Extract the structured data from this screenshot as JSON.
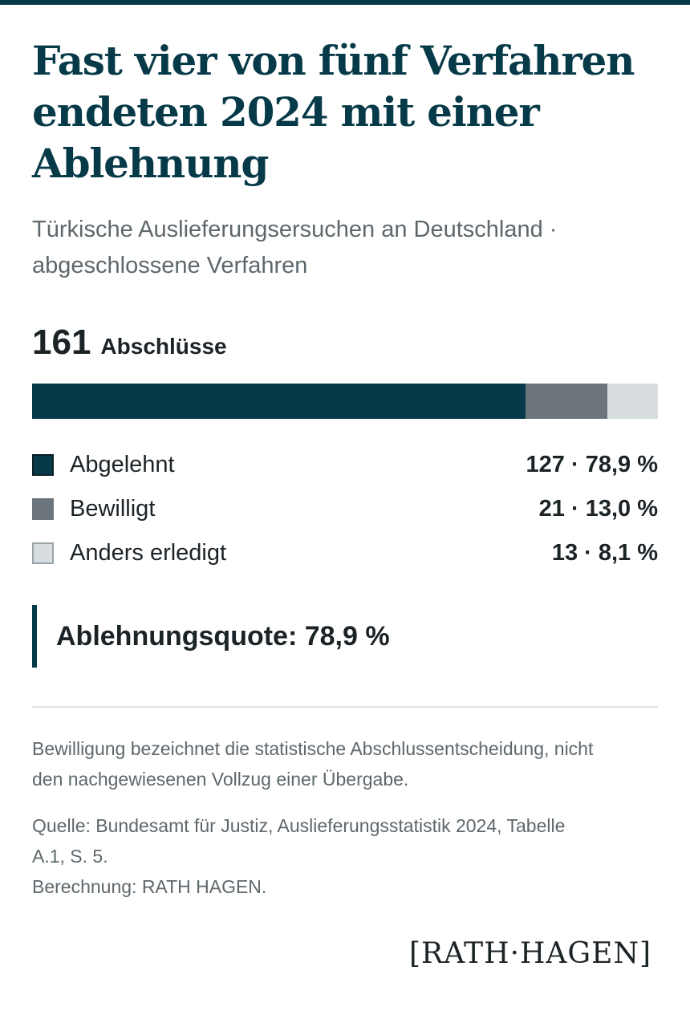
{
  "header": {
    "title": "Fast vier von fünf Verfahren endeten 2024 mit einer Ablehnung",
    "subtitle_line1": "Türkische Auslieferungsersuchen an Deutschland ·",
    "subtitle_line2": "abgeschlossene Verfahren"
  },
  "colors": {
    "accent": "#073a48",
    "abgelehnt": "#073a48",
    "bewilligt": "#6b757b",
    "anders": "#d7dde0"
  },
  "chart_data": {
    "type": "bar",
    "stacked": true,
    "orientation": "horizontal",
    "total": 161,
    "total_label": "Abschlüsse",
    "categories": [
      "Abgelehnt",
      "Bewilligt",
      "Anders erledigt"
    ],
    "values": [
      127,
      21,
      13
    ],
    "percents": [
      78.9,
      13.0,
      8.1
    ],
    "value_labels": [
      "127 · 78,9 %",
      "21 · 13,0 %",
      "13 · 8,1 %"
    ],
    "legend_position": "below"
  },
  "callout": {
    "text": "Ablehnungsquote: 78,9 %"
  },
  "footer": {
    "note_line1": "Bewilligung bezeichnet die statistische Abschlussentscheidung, nicht",
    "note_line2": "den nachgewiesenen Vollzug einer Übergabe.",
    "source_line1": "Quelle: Bundesamt für Justiz, Auslieferungsstatistik 2024, Tabelle",
    "source_line2": "A.1, S. 5.",
    "source_line3": "Berechnung: RATH HAGEN."
  },
  "brand": {
    "logo_text": "[RATH·HAGEN]"
  }
}
